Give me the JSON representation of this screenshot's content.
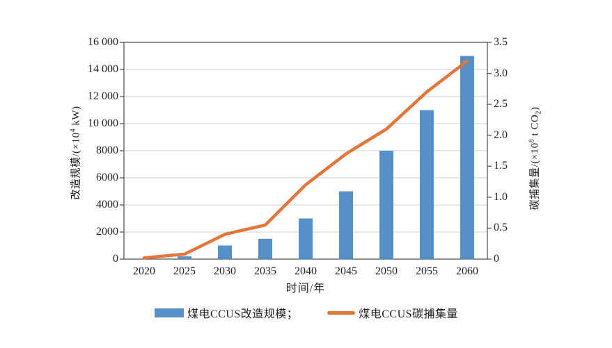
{
  "chart_data": {
    "type": "bar+line",
    "title": "",
    "categories": [
      "2020",
      "2025",
      "2030",
      "2035",
      "2040",
      "2045",
      "2050",
      "2055",
      "2060"
    ],
    "x_axis": {
      "title": "时间/年"
    },
    "left_axis": {
      "label": {
        "prefix": "改造规模/(×10",
        "sup": "4",
        "suffix": " kW)"
      },
      "min": 0,
      "max": 16000,
      "tick_step": 2000,
      "tick_labels": [
        "0",
        "2000",
        "4000",
        "6000",
        "8000",
        "10 000",
        "12 000",
        "14 000",
        "16 000"
      ]
    },
    "right_axis": {
      "label": {
        "prefix": "碳捕集量/(×10",
        "sup": "8",
        "mid": " t CO",
        "sub": "2",
        "suffix": ")"
      },
      "min": 0,
      "max": 3.5,
      "tick_step": 0.5,
      "tick_labels": [
        "0",
        "0.5",
        "1.0",
        "1.5",
        "2.0",
        "2.5",
        "3.0",
        "3.5"
      ]
    },
    "series": [
      {
        "name": "煤电CCUS改造规模",
        "type": "bar",
        "axis": "left",
        "color": "#5590C8",
        "values": [
          0,
          200,
          1000,
          1500,
          3000,
          5000,
          8000,
          11000,
          15000
        ]
      },
      {
        "name": "煤电CCUS碳捕集量",
        "type": "line",
        "axis": "right",
        "color": "#E2763B",
        "values": [
          0.02,
          0.08,
          0.4,
          0.55,
          1.2,
          1.7,
          2.1,
          2.7,
          3.2
        ]
      }
    ],
    "legend": [
      {
        "label": "煤电CCUS改造规模；",
        "marker": "rect",
        "color": "#5590C8"
      },
      {
        "label": "煤电CCUS碳捕集量",
        "marker": "line",
        "color": "#E2763B"
      }
    ],
    "grid": true,
    "legend_position": "bottom",
    "colors": {
      "grid": "#CFCFCF",
      "axis": "#4A4A4A",
      "text": "#1F1F1F",
      "background": "#FFFFFF"
    }
  }
}
